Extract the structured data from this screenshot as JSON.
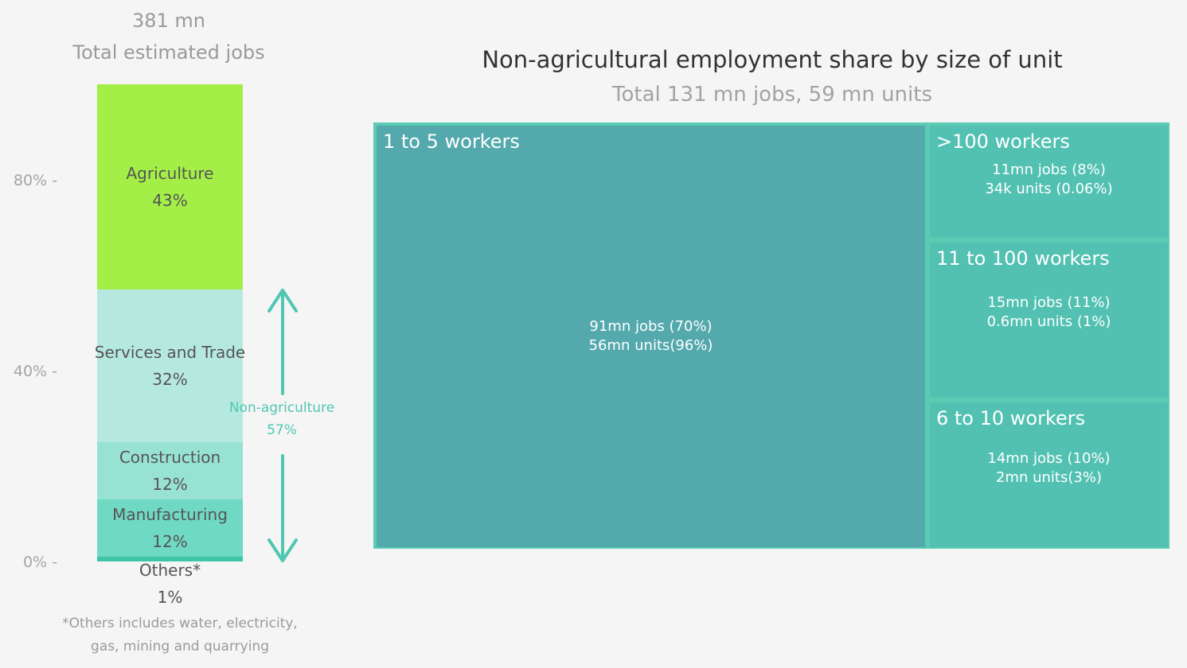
{
  "left_panel": {
    "total_value": "381 mn",
    "total_label": "Total estimated jobs",
    "y_ticks": [
      "80% -",
      "40% -",
      "0% -"
    ],
    "others_note_line1": "*Others includes water, electricity,",
    "others_note_line2": "gas, mining and quarrying",
    "annotation": {
      "label": "Non-agriculture",
      "value": "57%",
      "color": "#4fc7b3"
    }
  },
  "treemap_panel": {
    "title": "Non-agricultural employment share by size of unit",
    "subtitle": "Total 131 mn jobs, 59 mn units"
  },
  "chart_data": [
    {
      "type": "bar",
      "stacked": true,
      "ylim": [
        0,
        100
      ],
      "y_ticks": [
        "80%",
        "40%",
        "0%"
      ],
      "segments": [
        {
          "name": "Others*",
          "value": 1,
          "label": "1%",
          "color": "#3ec4a7"
        },
        {
          "name": "Manufacturing",
          "value": 12,
          "label": "12%",
          "color": "#70d9c4"
        },
        {
          "name": "Construction",
          "value": 12,
          "label": "12%",
          "color": "#97e2d3"
        },
        {
          "name": "Services and Trade",
          "value": 32,
          "label": "32%",
          "color": "#b5e9df"
        },
        {
          "name": "Agriculture",
          "value": 43,
          "label": "43%",
          "color": "#a3ef47"
        }
      ]
    },
    {
      "type": "treemap",
      "tiles": [
        {
          "name": "1 to 5 workers",
          "jobs_mn": 91,
          "jobs_share": 70,
          "detail1": "91mn jobs (70%)",
          "detail2": "56mn units(96%)",
          "color": "#54a9ad"
        },
        {
          "name": ">100 workers",
          "jobs_mn": 11,
          "jobs_share": 8,
          "detail1": "11mn jobs (8%)",
          "detail2": "34k units (0.06%)",
          "color": "#52c1b2"
        },
        {
          "name": "11 to 100 workers",
          "jobs_mn": 15,
          "jobs_share": 11,
          "detail1": "15mn jobs (11%)",
          "detail2": "0.6mn units (1%)",
          "color": "#52c1b2"
        },
        {
          "name": "6 to 10 workers",
          "jobs_mn": 14,
          "jobs_share": 10,
          "detail1": "14mn jobs (10%)",
          "detail2": "2mn units(3%)",
          "color": "#52c1b2"
        }
      ]
    }
  ]
}
